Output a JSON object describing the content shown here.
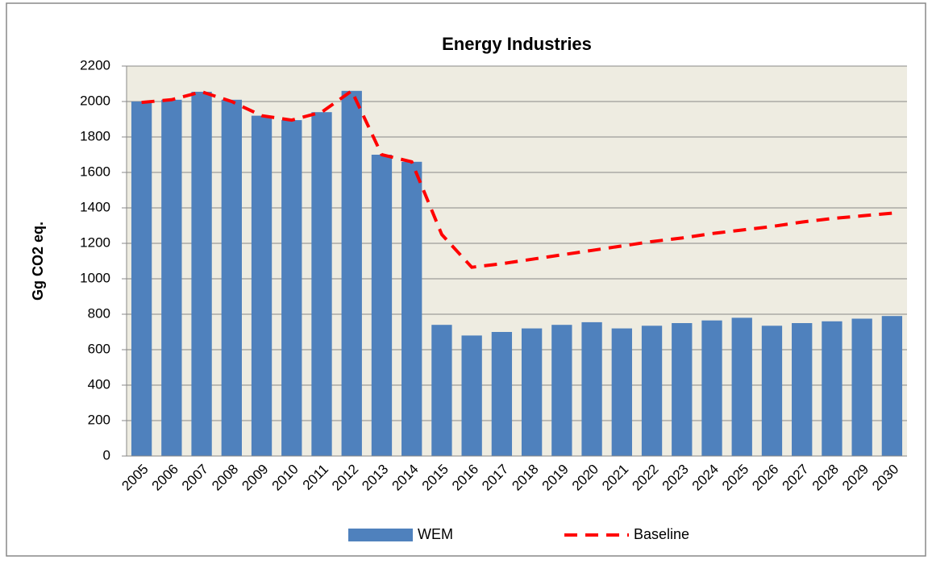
{
  "chart_data": {
    "type": "bar",
    "title": "Energy Industries",
    "y_label": "Gg CO2 eq.",
    "categories": [
      "2005",
      "2006",
      "2007",
      "2008",
      "2009",
      "2010",
      "2011",
      "2012",
      "2013",
      "2014",
      "2015",
      "2016",
      "2017",
      "2018",
      "2019",
      "2020",
      "2021",
      "2022",
      "2023",
      "2024",
      "2025",
      "2026",
      "2027",
      "2028",
      "2029",
      "2030"
    ],
    "series": [
      {
        "name": "WEM",
        "type": "bar",
        "color": "#4f81bd",
        "values": [
          2000,
          2010,
          2055,
          2010,
          1920,
          1895,
          1940,
          2060,
          1700,
          1660,
          740,
          680,
          700,
          720,
          740,
          755,
          720,
          735,
          750,
          765,
          780,
          735,
          750,
          760,
          775,
          790
        ]
      },
      {
        "name": "Baseline",
        "type": "line",
        "dashed": true,
        "color": "#ff0000",
        "values": [
          1995,
          2010,
          2055,
          2000,
          1920,
          1895,
          1940,
          2060,
          1700,
          1660,
          1250,
          1065,
          1085,
          1110,
          1135,
          1160,
          1185,
          1210,
          1230,
          1255,
          1275,
          1295,
          1320,
          1340,
          1355,
          1370
        ]
      }
    ],
    "ylim": [
      0,
      2200
    ],
    "yticks": [
      0,
      200,
      400,
      600,
      800,
      1000,
      1200,
      1400,
      1600,
      1800,
      2000,
      2200
    ],
    "grid": true,
    "legend": "bottom"
  }
}
